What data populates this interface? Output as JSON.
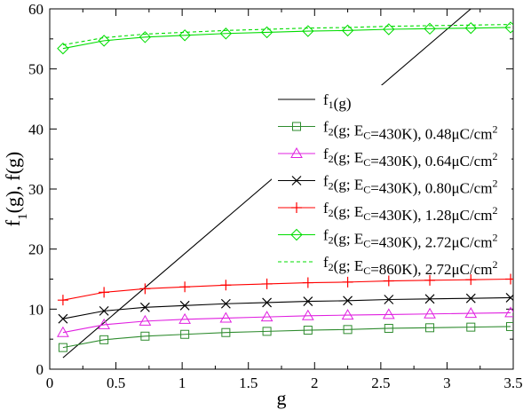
{
  "chart_data": {
    "type": "line",
    "xlabel": "g",
    "ylabel": "f1(g), f2(g)",
    "xlim": [
      0,
      3.5
    ],
    "ylim": [
      0,
      60
    ],
    "xticks": [
      "0",
      "0.5",
      "1",
      "1.5",
      "2",
      "2.5",
      "3",
      "3.5"
    ],
    "yticks": [
      "0",
      "10",
      "20",
      "30",
      "40",
      "50",
      "60"
    ],
    "grid": false,
    "legend_position": "center-right",
    "series": [
      {
        "name": "f1(g)",
        "color": "#000000",
        "style": "solid",
        "marker": "none",
        "x": [
          0.1,
          3.18
        ],
        "y": [
          1.9,
          60
        ]
      },
      {
        "name": "f2(g; EC=430K), 0.48μC/cm2",
        "color": "#2e8b2e",
        "style": "solid",
        "marker": "square",
        "x": [
          0.1,
          0.41,
          0.72,
          1.02,
          1.33,
          1.64,
          1.95,
          2.25,
          2.56,
          2.87,
          3.18,
          3.48
        ],
        "y": [
          3.6,
          4.9,
          5.5,
          5.8,
          6.1,
          6.3,
          6.5,
          6.6,
          6.8,
          6.9,
          7.0,
          7.1
        ]
      },
      {
        "name": "f2(g; EC=430K), 0.64μC/cm2",
        "color": "#e020e0",
        "style": "solid",
        "marker": "triangle",
        "x": [
          0.1,
          0.41,
          0.72,
          1.02,
          1.33,
          1.64,
          1.95,
          2.25,
          2.56,
          2.87,
          3.18,
          3.48
        ],
        "y": [
          6.1,
          7.4,
          8.0,
          8.3,
          8.5,
          8.7,
          8.9,
          9.0,
          9.1,
          9.2,
          9.3,
          9.4
        ]
      },
      {
        "name": "f2(g; EC=430K), 0.80μC/cm2",
        "color": "#000000",
        "style": "solid",
        "marker": "x",
        "x": [
          0.1,
          0.41,
          0.72,
          1.02,
          1.33,
          1.64,
          1.95,
          2.25,
          2.56,
          2.87,
          3.18,
          3.48
        ],
        "y": [
          8.4,
          9.7,
          10.3,
          10.6,
          10.9,
          11.1,
          11.3,
          11.4,
          11.6,
          11.7,
          11.8,
          11.9
        ]
      },
      {
        "name": "f2(g; EC=430K), 1.28μC/cm2",
        "color": "#ff0000",
        "style": "solid",
        "marker": "plus",
        "x": [
          0.1,
          0.41,
          0.72,
          1.02,
          1.33,
          1.64,
          1.95,
          2.25,
          2.56,
          2.87,
          3.18,
          3.48
        ],
        "y": [
          11.5,
          12.8,
          13.4,
          13.7,
          14.0,
          14.2,
          14.4,
          14.5,
          14.7,
          14.8,
          14.9,
          15.0
        ]
      },
      {
        "name": "f2(g; EC=430K), 2.72μC/cm2",
        "color": "#00dd00",
        "style": "solid",
        "marker": "diamond",
        "x": [
          0.1,
          0.41,
          0.72,
          1.02,
          1.33,
          1.64,
          1.95,
          2.25,
          2.56,
          2.87,
          3.18,
          3.48
        ],
        "y": [
          53.4,
          54.7,
          55.3,
          55.6,
          55.9,
          56.1,
          56.3,
          56.4,
          56.6,
          56.7,
          56.8,
          56.9
        ]
      },
      {
        "name": "f2(g; EC=860K), 2.72μC/cm2",
        "color": "#00dd00",
        "style": "dashed",
        "marker": "none",
        "x": [
          0.1,
          0.41,
          0.72,
          1.02,
          1.33,
          1.64,
          1.95,
          2.25,
          2.56,
          2.87,
          3.18,
          3.48
        ],
        "y": [
          54.0,
          55.2,
          55.8,
          56.1,
          56.4,
          56.6,
          56.8,
          56.9,
          57.1,
          57.2,
          57.3,
          57.4
        ]
      }
    ]
  }
}
